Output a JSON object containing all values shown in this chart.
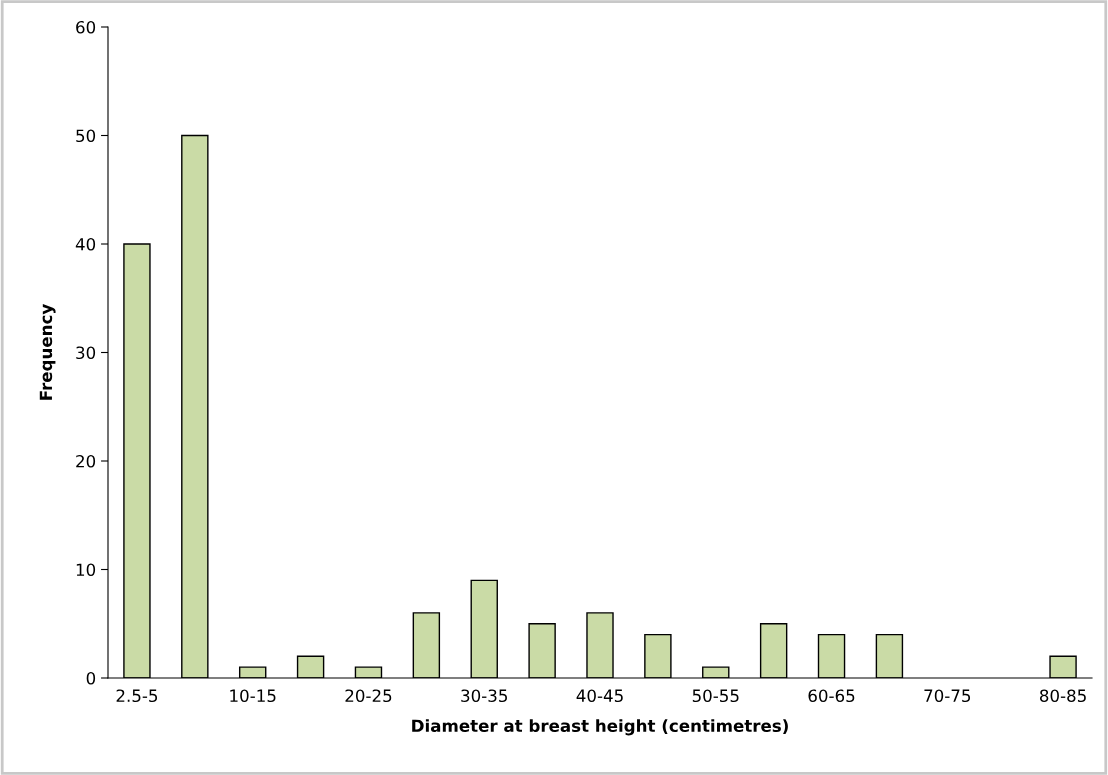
{
  "chart_data": {
    "type": "bar",
    "xlabel": "Diameter at breast height (centimetres)",
    "ylabel": "Frequency",
    "categories": [
      "2.5-5",
      null,
      "10-15",
      null,
      "20-25",
      null,
      "30-35",
      null,
      "40-45",
      null,
      "50-55",
      null,
      "60-65",
      null,
      "70-75",
      null,
      "80-85"
    ],
    "series": [
      {
        "color": "#cadba6",
        "values": [
          40,
          50,
          1,
          2,
          1,
          6,
          9,
          5,
          6,
          4,
          1,
          5,
          4,
          4,
          0,
          0,
          2
        ]
      }
    ],
    "ylim": [
      0,
      60
    ],
    "yticks": [
      0,
      10,
      20,
      30,
      40,
      50,
      60
    ],
    "grid": false,
    "legend": false
  }
}
